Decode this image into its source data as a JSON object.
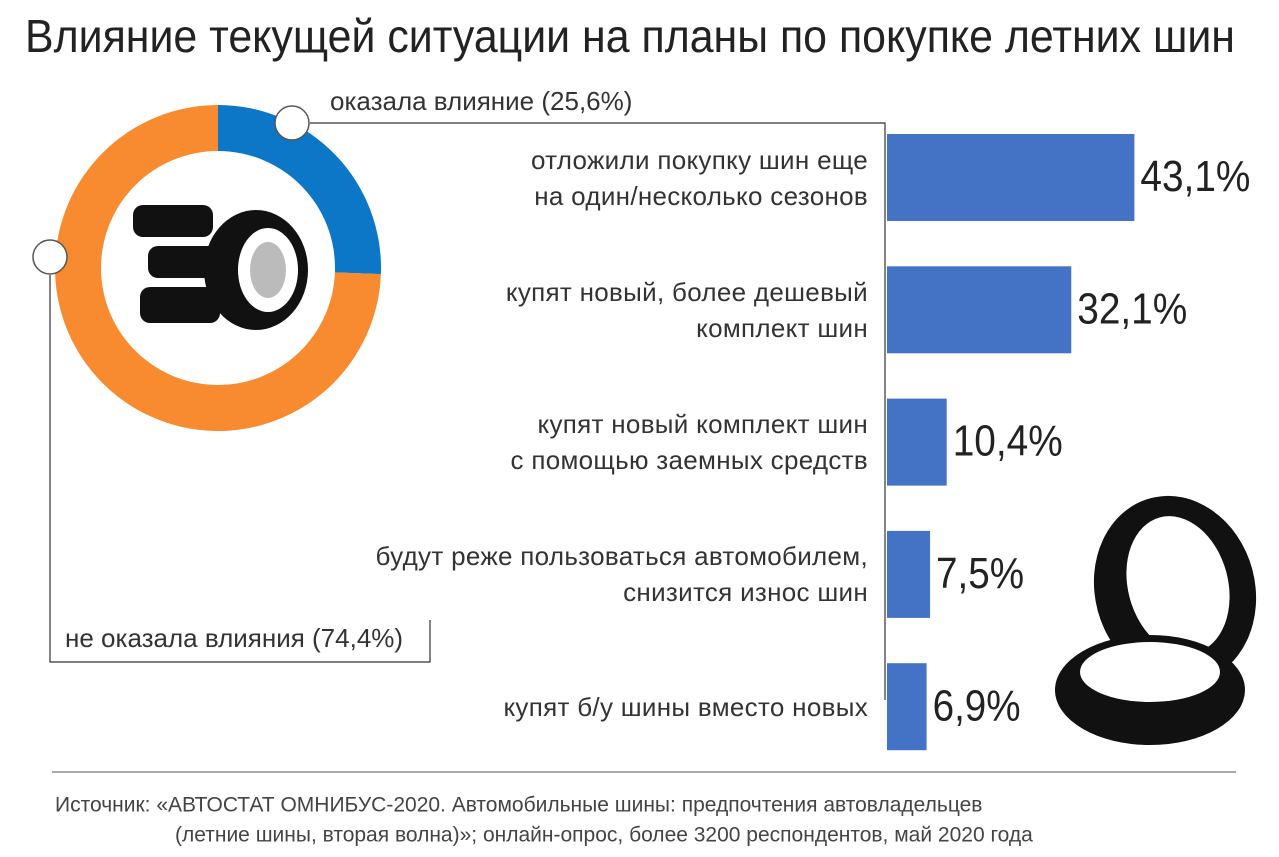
{
  "title": "Влияние текущей ситуации на планы по покупке летних шин",
  "source": [
    "Источник: «АВТОСТАТ ОМНИБУС-2020. Автомобильные шины: предпочтения автовладельцев",
    "(летние шины, вторая волна)»; онлайн-опрос, более 3200 респондентов, май 2020 года"
  ],
  "chart_data": [
    {
      "type": "pie",
      "values": [
        25.6,
        74.4
      ],
      "value_labels": [
        "оказала влияние (25,6%)",
        "не оказала влияния (74,4%)"
      ],
      "colors": [
        "#0b77c6",
        "#f88b2f"
      ]
    },
    {
      "type": "bar",
      "orientation": "horizontal",
      "categories": [
        "отложили покупку шин еще\nна один/несколько сезонов",
        "купят новый, более дешевый\nкомплект шин",
        "купят новый комплект шин\nс помощью заемных средств",
        "будут реже пользоваться автомобилем,\nснизится износ шин",
        "купят б/у шины вместо новых"
      ],
      "values": [
        43.1,
        32.1,
        10.4,
        7.5,
        6.9
      ],
      "value_labels": [
        "43,1%",
        "32,1%",
        "10,4%",
        "7,5%",
        "6,9%"
      ],
      "color": "#4472c4",
      "xlim": [
        0,
        50
      ]
    }
  ]
}
